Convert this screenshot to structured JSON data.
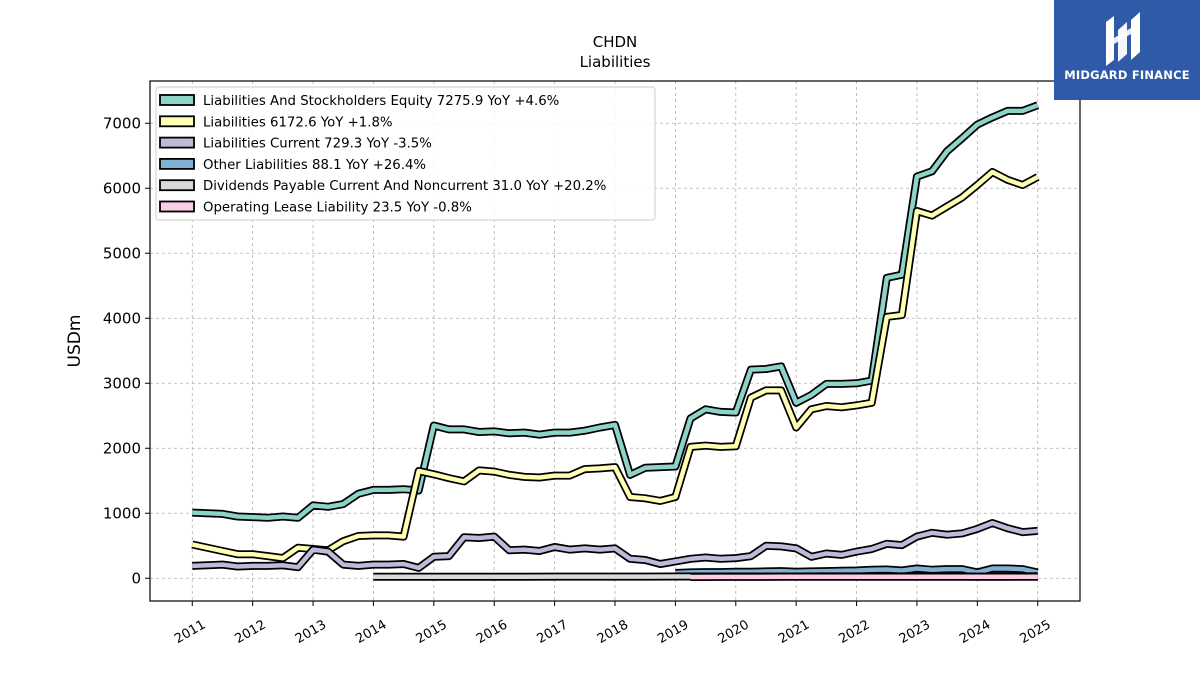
{
  "logo": {
    "text": "MIDGARD FINANCE"
  },
  "chart_data": {
    "type": "line",
    "title": "CHDN",
    "subtitle": "Liabilities",
    "ylabel": "USDm",
    "xlabel": "",
    "ylim": [
      -350,
      7650
    ],
    "xlim": [
      2010.3,
      2025.7
    ],
    "yticks": [
      0,
      1000,
      2000,
      3000,
      4000,
      5000,
      6000,
      7000
    ],
    "xticks": [
      "2011",
      "2012",
      "2013",
      "2014",
      "2015",
      "2016",
      "2017",
      "2018",
      "2019",
      "2020",
      "2021",
      "2022",
      "2023",
      "2024",
      "2025"
    ],
    "grid": true,
    "legend_position": "top-left",
    "series": [
      {
        "name": "Liabilities And Stockholders Equity",
        "legend_label": "Liabilities And Stockholders Equity  7275.9 YoY +4.6%",
        "color": "#8dd3c7",
        "x": [
          2011.0,
          2011.5,
          2011.75,
          2012.0,
          2012.25,
          2012.5,
          2012.75,
          2013.0,
          2013.25,
          2013.5,
          2013.75,
          2014.0,
          2014.25,
          2014.5,
          2014.75,
          2015.0,
          2015.25,
          2015.5,
          2015.75,
          2016.0,
          2016.25,
          2016.5,
          2016.75,
          2017.0,
          2017.25,
          2017.5,
          2017.75,
          2018.0,
          2018.25,
          2018.5,
          2018.75,
          2019.0,
          2019.25,
          2019.5,
          2019.75,
          2020.0,
          2020.25,
          2020.5,
          2020.75,
          2021.0,
          2021.25,
          2021.5,
          2021.75,
          2022.0,
          2022.25,
          2022.5,
          2022.75,
          2023.0,
          2023.25,
          2023.5,
          2023.75,
          2024.0,
          2024.25,
          2024.5,
          2024.75,
          2025.0
        ],
        "values": [
          1010,
          990,
          950,
          940,
          930,
          950,
          930,
          1120,
          1100,
          1140,
          1300,
          1360,
          1360,
          1370,
          1350,
          2350,
          2290,
          2290,
          2250,
          2260,
          2230,
          2240,
          2210,
          2240,
          2240,
          2270,
          2320,
          2360,
          1590,
          1700,
          1710,
          1720,
          2460,
          2600,
          2560,
          2550,
          3210,
          3220,
          3260,
          2700,
          2820,
          2990,
          2990,
          3000,
          3040,
          4620,
          4670,
          6180,
          6260,
          6570,
          6770,
          6980,
          7090,
          7190,
          7190,
          7276
        ]
      },
      {
        "name": "Liabilities",
        "legend_label": "Liabilities  6172.6 YoY +1.8%",
        "color": "#ffffb3",
        "x": [
          2011.0,
          2011.5,
          2011.75,
          2012.0,
          2012.25,
          2012.5,
          2012.75,
          2013.0,
          2013.25,
          2013.5,
          2013.75,
          2014.0,
          2014.25,
          2014.5,
          2014.75,
          2015.0,
          2015.25,
          2015.5,
          2015.75,
          2016.0,
          2016.25,
          2016.5,
          2016.75,
          2017.0,
          2017.25,
          2017.5,
          2017.75,
          2018.0,
          2018.25,
          2018.5,
          2018.75,
          2019.0,
          2019.25,
          2019.5,
          2019.75,
          2020.0,
          2020.25,
          2020.5,
          2020.75,
          2021.0,
          2021.25,
          2021.5,
          2021.75,
          2022.0,
          2022.25,
          2022.5,
          2022.75,
          2023.0,
          2023.25,
          2023.5,
          2023.75,
          2024.0,
          2024.25,
          2024.5,
          2024.75,
          2025.0
        ],
        "values": [
          520,
          420,
          370,
          370,
          340,
          310,
          470,
          450,
          430,
          570,
          650,
          660,
          660,
          640,
          1650,
          1600,
          1540,
          1490,
          1660,
          1640,
          1590,
          1560,
          1550,
          1580,
          1580,
          1680,
          1690,
          1710,
          1250,
          1230,
          1190,
          1250,
          2020,
          2040,
          2020,
          2030,
          2780,
          2890,
          2890,
          2320,
          2600,
          2650,
          2630,
          2660,
          2700,
          4020,
          4050,
          5650,
          5580,
          5720,
          5860,
          6050,
          6250,
          6130,
          6050,
          6173
        ]
      },
      {
        "name": "Liabilities Current",
        "legend_label": "Liabilities Current  729.3 YoY -3.5%",
        "color": "#bebada",
        "x": [
          2011.0,
          2011.5,
          2011.75,
          2012.0,
          2012.25,
          2012.5,
          2012.75,
          2013.0,
          2013.25,
          2013.5,
          2013.75,
          2014.0,
          2014.25,
          2014.5,
          2014.75,
          2015.0,
          2015.25,
          2015.5,
          2015.75,
          2016.0,
          2016.25,
          2016.5,
          2016.75,
          2017.0,
          2017.25,
          2017.5,
          2017.75,
          2018.0,
          2018.25,
          2018.5,
          2018.75,
          2019.0,
          2019.25,
          2019.5,
          2019.75,
          2020.0,
          2020.25,
          2020.5,
          2020.75,
          2021.0,
          2021.25,
          2021.5,
          2021.75,
          2022.0,
          2022.25,
          2022.5,
          2022.75,
          2023.0,
          2023.25,
          2023.5,
          2023.75,
          2024.0,
          2024.25,
          2024.5,
          2024.75,
          2025.0
        ],
        "values": [
          190,
          210,
          180,
          190,
          190,
          200,
          170,
          440,
          410,
          210,
          190,
          210,
          210,
          220,
          160,
          330,
          340,
          630,
          620,
          640,
          430,
          440,
          420,
          480,
          440,
          460,
          440,
          460,
          300,
          280,
          220,
          260,
          300,
          320,
          300,
          310,
          340,
          500,
          490,
          460,
          330,
          380,
          360,
          410,
          450,
          530,
          510,
          640,
          700,
          670,
          690,
          760,
          850,
          770,
          710,
          729
        ]
      },
      {
        "name": "Other Liabilities",
        "legend_label": "Other Liabilities  88.1 YoY +26.4%",
        "color": "#80b1d3",
        "x": [
          2019.0,
          2019.25,
          2019.5,
          2019.75,
          2020.0,
          2020.25,
          2020.5,
          2020.75,
          2021.0,
          2021.25,
          2021.5,
          2021.75,
          2022.0,
          2022.25,
          2022.5,
          2022.75,
          2023.0,
          2023.25,
          2023.5,
          2023.75,
          2024.0,
          2024.25,
          2024.5,
          2024.75,
          2025.0
        ],
        "values": [
          80,
          90,
          95,
          95,
          100,
          100,
          105,
          110,
          100,
          105,
          110,
          115,
          120,
          130,
          135,
          120,
          150,
          130,
          140,
          140,
          90,
          150,
          150,
          140,
          88
        ]
      },
      {
        "name": "Dividends Payable Current And Noncurrent",
        "legend_label": "Dividends Payable Current And Noncurrent  31.0 YoY +20.2%",
        "color": "#d9d9d9",
        "x": [
          2014.0,
          2014.5,
          2015.0,
          2015.5,
          2016.0,
          2016.5,
          2017.0,
          2017.5,
          2018.0,
          2018.5,
          2019.0,
          2019.5,
          2020.0,
          2020.5,
          2021.0,
          2021.5,
          2022.0,
          2022.5,
          2023.0,
          2023.5,
          2024.0,
          2024.5,
          2025.0
        ],
        "values": [
          22,
          22,
          23,
          23,
          24,
          24,
          25,
          25,
          26,
          26,
          27,
          27,
          27,
          27,
          27,
          28,
          28,
          28,
          28,
          29,
          26,
          26,
          31
        ]
      },
      {
        "name": "Operating Lease Liability",
        "legend_label": "Operating Lease Liability  23.5 YoY -0.8%",
        "color": "#fccde5",
        "x": [
          2019.25,
          2019.75,
          2020.25,
          2020.75,
          2021.25,
          2021.75,
          2022.25,
          2022.75,
          2023.25,
          2023.75,
          2024.25,
          2024.75,
          2025.0
        ],
        "values": [
          20,
          21,
          21,
          22,
          22,
          23,
          23,
          24,
          24,
          24,
          24,
          24,
          23.5
        ]
      }
    ]
  }
}
